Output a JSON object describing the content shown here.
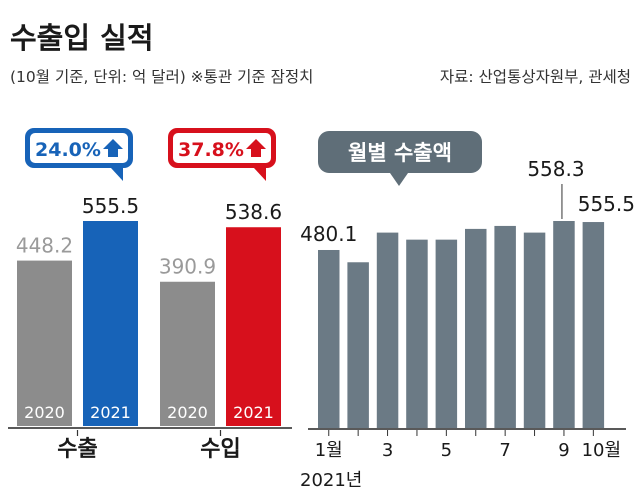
{
  "header": {
    "title": "수출입 실적",
    "subtitle": "(10월 기준, 단위: 억 달러) ※통관 기준 잠정치",
    "source": "자료: 산업통상자원부, 관세청"
  },
  "colors": {
    "bar_2020": "#8c8c8c",
    "bar_export_2021": "#1763b8",
    "bar_import_2021": "#d7101c",
    "monthly_bar": "#6b7a85",
    "monthly_title_bg": "#5f6e78",
    "value_2020_text": "#9a9a9a",
    "badge_export_text": "#1763b8",
    "badge_import_text": "#d7101c"
  },
  "chart_data": [
    {
      "type": "bar",
      "group_label": "수출",
      "categories": [
        "2020",
        "2021"
      ],
      "values": [
        448.2,
        555.5
      ],
      "value_labels": [
        "448.2",
        "555.5"
      ],
      "change_label": "24.0%",
      "change_direction": "up",
      "ylim": [
        0,
        600
      ]
    },
    {
      "type": "bar",
      "group_label": "수입",
      "categories": [
        "2020",
        "2021"
      ],
      "values": [
        390.9,
        538.6
      ],
      "value_labels": [
        "390.9",
        "538.6"
      ],
      "change_label": "37.8%",
      "change_direction": "up",
      "ylim": [
        0,
        600
      ]
    },
    {
      "type": "bar",
      "title": "월별 수출액",
      "x": [
        1,
        2,
        3,
        4,
        5,
        6,
        7,
        8,
        9,
        10
      ],
      "values": [
        480.1,
        447,
        527,
        508,
        508,
        537,
        545,
        527,
        558.3,
        555.5
      ],
      "tick_labels": [
        "1월",
        "",
        "3",
        "",
        "5",
        "",
        "7",
        "",
        "9",
        "10월"
      ],
      "year_label": "2021년",
      "data_labels": [
        {
          "index": 0,
          "text": "480.1"
        },
        {
          "index": 8,
          "text": "558.3"
        },
        {
          "index": 9,
          "text": "555.5"
        }
      ],
      "ylim": [
        0,
        600
      ]
    }
  ]
}
